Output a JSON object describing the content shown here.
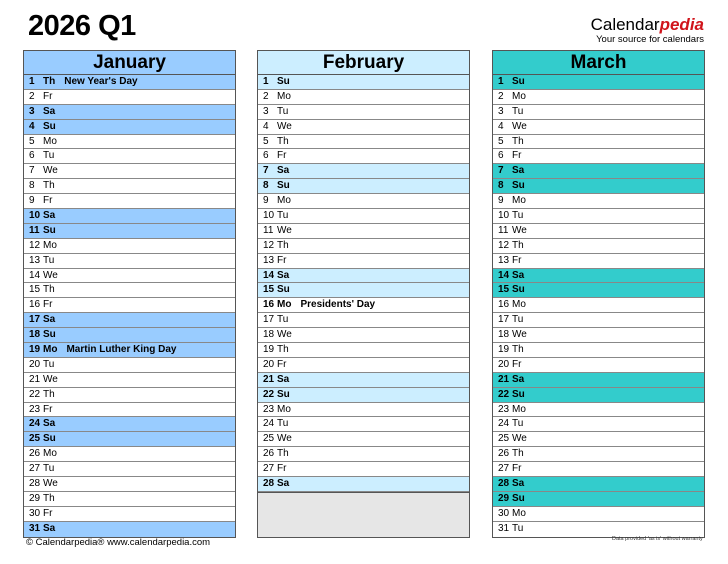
{
  "title": "2026 Q1",
  "logo": {
    "name_a": "Calendar",
    "name_b": "pedia",
    "tagline": "Your source for calendars"
  },
  "footer": {
    "left": "© Calendarpedia®   www.calendarpedia.com",
    "right": "Data provided 'as is' without warranty"
  },
  "colors": {
    "january": "#99ccff",
    "february": "#cceeff",
    "march": "#33cccc",
    "empty": "#e6e6e6"
  },
  "months": [
    {
      "name": "January",
      "days": [
        {
          "d": "1",
          "w": "Th",
          "note": "New Year's Day",
          "shaded": true
        },
        {
          "d": "2",
          "w": "Fr"
        },
        {
          "d": "3",
          "w": "Sa",
          "shaded": true
        },
        {
          "d": "4",
          "w": "Su",
          "shaded": true
        },
        {
          "d": "5",
          "w": "Mo"
        },
        {
          "d": "6",
          "w": "Tu"
        },
        {
          "d": "7",
          "w": "We"
        },
        {
          "d": "8",
          "w": "Th"
        },
        {
          "d": "9",
          "w": "Fr"
        },
        {
          "d": "10",
          "w": "Sa",
          "shaded": true
        },
        {
          "d": "11",
          "w": "Su",
          "shaded": true
        },
        {
          "d": "12",
          "w": "Mo"
        },
        {
          "d": "13",
          "w": "Tu"
        },
        {
          "d": "14",
          "w": "We"
        },
        {
          "d": "15",
          "w": "Th"
        },
        {
          "d": "16",
          "w": "Fr"
        },
        {
          "d": "17",
          "w": "Sa",
          "shaded": true
        },
        {
          "d": "18",
          "w": "Su",
          "shaded": true
        },
        {
          "d": "19",
          "w": "Mo",
          "note": "Martin Luther King Day",
          "shaded": true
        },
        {
          "d": "20",
          "w": "Tu"
        },
        {
          "d": "21",
          "w": "We"
        },
        {
          "d": "22",
          "w": "Th"
        },
        {
          "d": "23",
          "w": "Fr"
        },
        {
          "d": "24",
          "w": "Sa",
          "shaded": true
        },
        {
          "d": "25",
          "w": "Su",
          "shaded": true
        },
        {
          "d": "26",
          "w": "Mo"
        },
        {
          "d": "27",
          "w": "Tu"
        },
        {
          "d": "28",
          "w": "We"
        },
        {
          "d": "29",
          "w": "Th"
        },
        {
          "d": "30",
          "w": "Fr"
        },
        {
          "d": "31",
          "w": "Sa",
          "shaded": true
        }
      ]
    },
    {
      "name": "February",
      "days": [
        {
          "d": "1",
          "w": "Su",
          "shaded": true
        },
        {
          "d": "2",
          "w": "Mo"
        },
        {
          "d": "3",
          "w": "Tu"
        },
        {
          "d": "4",
          "w": "We"
        },
        {
          "d": "5",
          "w": "Th"
        },
        {
          "d": "6",
          "w": "Fr"
        },
        {
          "d": "7",
          "w": "Sa",
          "shaded": true
        },
        {
          "d": "8",
          "w": "Su",
          "shaded": true
        },
        {
          "d": "9",
          "w": "Mo"
        },
        {
          "d": "10",
          "w": "Tu"
        },
        {
          "d": "11",
          "w": "We"
        },
        {
          "d": "12",
          "w": "Th"
        },
        {
          "d": "13",
          "w": "Fr"
        },
        {
          "d": "14",
          "w": "Sa",
          "shaded": true
        },
        {
          "d": "15",
          "w": "Su",
          "shaded": true
        },
        {
          "d": "16",
          "w": "Mo",
          "note": "Presidents' Day",
          "bold": true
        },
        {
          "d": "17",
          "w": "Tu"
        },
        {
          "d": "18",
          "w": "We"
        },
        {
          "d": "19",
          "w": "Th"
        },
        {
          "d": "20",
          "w": "Fr"
        },
        {
          "d": "21",
          "w": "Sa",
          "shaded": true
        },
        {
          "d": "22",
          "w": "Su",
          "shaded": true
        },
        {
          "d": "23",
          "w": "Mo"
        },
        {
          "d": "24",
          "w": "Tu"
        },
        {
          "d": "25",
          "w": "We"
        },
        {
          "d": "26",
          "w": "Th"
        },
        {
          "d": "27",
          "w": "Fr"
        },
        {
          "d": "28",
          "w": "Sa",
          "shaded": true
        }
      ]
    },
    {
      "name": "March",
      "days": [
        {
          "d": "1",
          "w": "Su",
          "shaded": true
        },
        {
          "d": "2",
          "w": "Mo"
        },
        {
          "d": "3",
          "w": "Tu"
        },
        {
          "d": "4",
          "w": "We"
        },
        {
          "d": "5",
          "w": "Th"
        },
        {
          "d": "6",
          "w": "Fr"
        },
        {
          "d": "7",
          "w": "Sa",
          "shaded": true
        },
        {
          "d": "8",
          "w": "Su",
          "shaded": true
        },
        {
          "d": "9",
          "w": "Mo"
        },
        {
          "d": "10",
          "w": "Tu"
        },
        {
          "d": "11",
          "w": "We"
        },
        {
          "d": "12",
          "w": "Th"
        },
        {
          "d": "13",
          "w": "Fr"
        },
        {
          "d": "14",
          "w": "Sa",
          "shaded": true
        },
        {
          "d": "15",
          "w": "Su",
          "shaded": true
        },
        {
          "d": "16",
          "w": "Mo"
        },
        {
          "d": "17",
          "w": "Tu"
        },
        {
          "d": "18",
          "w": "We"
        },
        {
          "d": "19",
          "w": "Th"
        },
        {
          "d": "20",
          "w": "Fr"
        },
        {
          "d": "21",
          "w": "Sa",
          "shaded": true
        },
        {
          "d": "22",
          "w": "Su",
          "shaded": true
        },
        {
          "d": "23",
          "w": "Mo"
        },
        {
          "d": "24",
          "w": "Tu"
        },
        {
          "d": "25",
          "w": "We"
        },
        {
          "d": "26",
          "w": "Th"
        },
        {
          "d": "27",
          "w": "Fr"
        },
        {
          "d": "28",
          "w": "Sa",
          "shaded": true
        },
        {
          "d": "29",
          "w": "Su",
          "shaded": true
        },
        {
          "d": "30",
          "w": "Mo"
        },
        {
          "d": "31",
          "w": "Tu"
        }
      ]
    }
  ]
}
